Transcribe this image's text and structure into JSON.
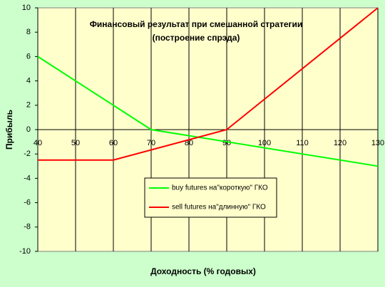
{
  "chart_data": {
    "type": "line",
    "title": "Финансовый результат при смешанной стратегии",
    "subtitle": "(построение спрэда)",
    "x_label": "Доходность (% годовых)",
    "y_label": "Прибыль",
    "xlim": [
      40,
      130
    ],
    "xticks": [
      40,
      50,
      60,
      70,
      80,
      90,
      100,
      110,
      120,
      130
    ],
    "ylim": [
      -10,
      10
    ],
    "yticks": [
      -10,
      -8,
      -6,
      -4,
      -2,
      0,
      2,
      4,
      6,
      8,
      10
    ],
    "grid": true,
    "legend": "center",
    "series": [
      {
        "name": "buy futures на\"короткую\" ГКО",
        "color": "#00ff00",
        "x": [
          40,
          70,
          130
        ],
        "values": [
          6,
          0,
          -3
        ]
      },
      {
        "name": "sell futures на\"длинную\" ГКО",
        "color": "#ff0000",
        "x": [
          40,
          60,
          90,
          130
        ],
        "values": [
          -2.5,
          -2.5,
          0,
          10
        ]
      }
    ]
  }
}
